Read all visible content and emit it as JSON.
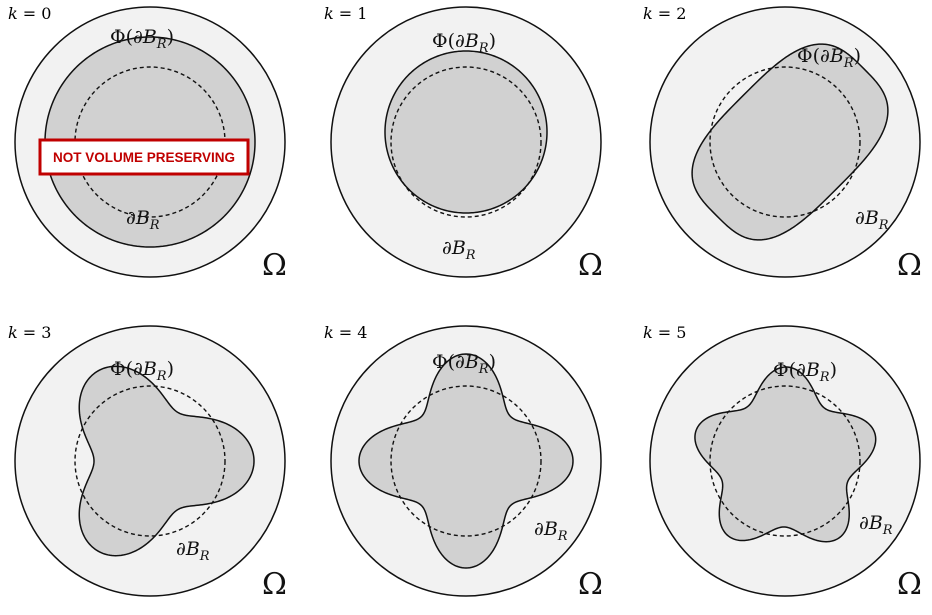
{
  "colors": {
    "domain_fill": "#f2f2f2",
    "shape_fill": "#d1d1d1",
    "stroke": "#111111",
    "badge": "#c00000"
  },
  "labels": {
    "phi_prefix": "Φ(∂",
    "phi_B": "B",
    "phi_sub": "R",
    "phi_close": ")",
    "ball_prefix": "∂",
    "ball_B": "B",
    "ball_sub": "R",
    "omega": "Ω"
  },
  "badge": {
    "text": "NOT VOLUME PRESERVING"
  },
  "panels": [
    {
      "k_var": "k",
      "k_eq": " = ",
      "k_val": "0",
      "modes": 0
    },
    {
      "k_var": "k",
      "k_eq": " = ",
      "k_val": "1",
      "modes": 1
    },
    {
      "k_var": "k",
      "k_eq": " = ",
      "k_val": "2",
      "modes": 2
    },
    {
      "k_var": "k",
      "k_eq": " = ",
      "k_val": "3",
      "modes": 3
    },
    {
      "k_var": "k",
      "k_eq": " = ",
      "k_val": "4",
      "modes": 4
    },
    {
      "k_var": "k",
      "k_eq": " = ",
      "k_val": "5",
      "modes": 5
    }
  ]
}
